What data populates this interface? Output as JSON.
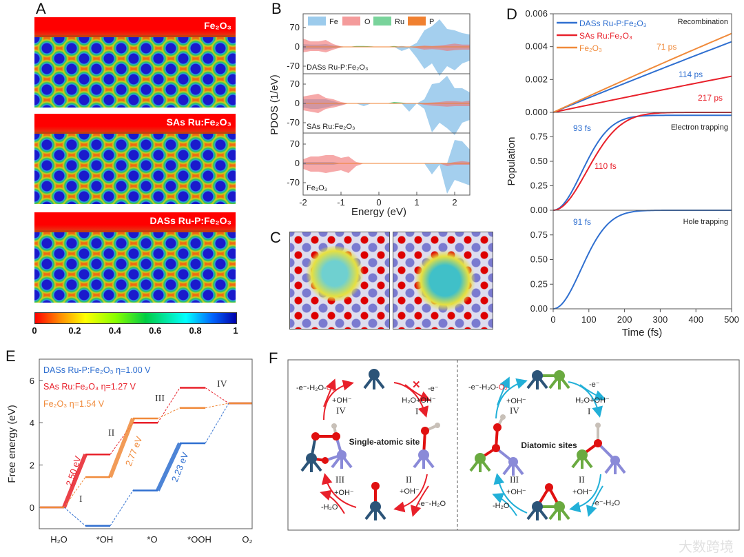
{
  "panel_labels": {
    "a": "A",
    "b": "B",
    "c": "C",
    "d": "D",
    "e": "E",
    "f": "F"
  },
  "panel_a": {
    "maps": [
      "Fe₂O₃",
      "SAs Ru:Fe₂O₃",
      "DASs Ru-P:Fe₂O₃"
    ],
    "colorbar_ticks": [
      "0",
      "0.2",
      "0.4",
      "0.6",
      "0.8",
      "1"
    ],
    "colorbar_range": [
      0,
      1
    ]
  },
  "colors": {
    "fe": "#5aa8e0",
    "o": "#f07070",
    "ru": "#40c070",
    "p": "#f08030",
    "blue": "#2f6fd0",
    "red": "#e8202a",
    "orange": "#f08a3a",
    "cyan": "#22b0d8"
  },
  "chart_data": [
    {
      "id": "B",
      "type": "area",
      "xlabel": "Energy (eV)",
      "ylabel": "PDOS (1/eV)",
      "xlim": [
        -2,
        2.4
      ],
      "ylim": [
        -108,
        108
      ],
      "xticks": [
        "-2",
        "-1",
        "0",
        "1",
        "2"
      ],
      "xtick_values": [
        -2,
        -1,
        0,
        1,
        2
      ],
      "yticks": [
        "70",
        "0",
        "-70"
      ],
      "ytick_values": [
        70,
        0,
        -70
      ],
      "legend": [
        "Fe",
        "O",
        "Ru",
        "P"
      ],
      "energy": [
        -2,
        -1.8,
        -1.6,
        -1.4,
        -1.2,
        -1.0,
        -0.8,
        -0.6,
        -0.4,
        -0.2,
        0,
        0.2,
        0.4,
        0.6,
        0.8,
        1.0,
        1.2,
        1.4,
        1.6,
        1.8,
        2.0,
        2.2,
        2.4
      ],
      "subplots": [
        {
          "label": "DASs Ru-P:Fe₂O₃",
          "fe_up": [
            10,
            8,
            8,
            10,
            5,
            2,
            0,
            0,
            0,
            0,
            0,
            0,
            0,
            3,
            0,
            15,
            60,
            75,
            100,
            65,
            60,
            50,
            45
          ],
          "fe_down": [
            -10,
            -8,
            -8,
            -10,
            -5,
            -2,
            0,
            0,
            0,
            0,
            0,
            0,
            0,
            -15,
            -5,
            -40,
            -80,
            -60,
            -105,
            -70,
            -85,
            -60,
            -50
          ],
          "o_up": [
            30,
            20,
            20,
            25,
            10,
            2,
            0,
            0,
            0,
            0,
            0,
            0,
            0,
            0,
            0,
            2,
            5,
            3,
            5,
            8,
            12,
            8,
            8
          ],
          "o_down": [
            -20,
            -15,
            -15,
            -20,
            -10,
            -2,
            0,
            0,
            0,
            0,
            0,
            0,
            0,
            0,
            0,
            -5,
            -10,
            -8,
            -10,
            -15,
            -12,
            -10,
            -10
          ],
          "ru_up": [
            0,
            0,
            0,
            0,
            0,
            0,
            0,
            3,
            3,
            2,
            0,
            0,
            3,
            0,
            0,
            0,
            0,
            0,
            0,
            0,
            0,
            0,
            0
          ]
        },
        {
          "label": "SAs Ru:Fe₂O₃",
          "fe_up": [
            15,
            15,
            15,
            15,
            8,
            0,
            0,
            0,
            0,
            0,
            0,
            0,
            0,
            0,
            0,
            0,
            15,
            70,
            75,
            100,
            55,
            55,
            40
          ],
          "fe_down": [
            -15,
            -20,
            -20,
            -15,
            -8,
            -5,
            0,
            0,
            -10,
            0,
            0,
            0,
            0,
            0,
            -30,
            0,
            -20,
            -105,
            -70,
            -90,
            -115,
            -70,
            -60
          ],
          "o_up": [
            25,
            30,
            35,
            20,
            15,
            5,
            0,
            0,
            0,
            0,
            0,
            0,
            0,
            0,
            0,
            0,
            2,
            3,
            5,
            8,
            8,
            6,
            10
          ],
          "o_down": [
            -25,
            -30,
            -35,
            -20,
            -15,
            -8,
            0,
            0,
            0,
            0,
            0,
            0,
            0,
            0,
            0,
            0,
            -5,
            -8,
            -10,
            -12,
            -10,
            -10,
            -10
          ],
          "ru_up": [
            0,
            0,
            0,
            0,
            0,
            0,
            0,
            0,
            0,
            0,
            0,
            0,
            5,
            3,
            0,
            0,
            0,
            0,
            0,
            0,
            0,
            0,
            0
          ]
        },
        {
          "label": "Fe₂O₃",
          "fe_up": [
            5,
            5,
            5,
            5,
            5,
            0,
            0,
            0,
            0,
            0,
            0,
            0,
            0,
            0,
            0,
            0,
            0,
            0,
            0,
            0,
            85,
            80,
            50
          ],
          "fe_down": [
            -5,
            -5,
            -5,
            -5,
            -5,
            0,
            0,
            0,
            0,
            0,
            0,
            0,
            0,
            0,
            0,
            0,
            0,
            -40,
            -5,
            -110,
            -60,
            -70,
            -80
          ],
          "o_up": [
            15,
            25,
            25,
            30,
            30,
            20,
            25,
            5,
            0,
            0,
            0,
            0,
            0,
            0,
            0,
            0,
            0,
            0,
            0,
            0,
            5,
            8,
            5
          ],
          "o_down": [
            -20,
            -30,
            -30,
            -35,
            -30,
            -25,
            -35,
            -10,
            0,
            0,
            0,
            0,
            0,
            0,
            0,
            0,
            0,
            0,
            0,
            -10,
            -5,
            -5,
            -5
          ],
          "ru_up": [
            0,
            0,
            0,
            0,
            0,
            0,
            0,
            0,
            0,
            0,
            0,
            0,
            0,
            0,
            0,
            0,
            0,
            0,
            0,
            0,
            0,
            0,
            0
          ]
        }
      ]
    },
    {
      "id": "D",
      "type": "line",
      "xlabel": "Time (fs)",
      "ylabel": "Population",
      "xlim": [
        0,
        500
      ],
      "xticks": [
        "0",
        "100",
        "200",
        "300",
        "400",
        "500"
      ],
      "xtick_values": [
        0,
        100,
        200,
        300,
        400,
        500
      ],
      "legend": [
        "DASs Ru-P:Fe₂O₃",
        "SAs Ru:Fe₂O₃",
        "Fe₂O₃"
      ],
      "subplots": [
        {
          "title": "Recombination",
          "ylim": [
            0,
            0.006
          ],
          "yticks": [
            "0.006",
            "0.004",
            "0.002",
            "0.000"
          ],
          "ytick_values": [
            0.006,
            0.004,
            0.002,
            0
          ],
          "series": [
            {
              "name": "DASs Ru-P:Fe₂O₃",
              "end_value": 0.0043,
              "lifetime_label": "114 ps"
            },
            {
              "name": "SAs Ru:Fe₂O₃",
              "end_value": 0.0022,
              "lifetime_label": "217 ps"
            },
            {
              "name": "Fe₂O₃",
              "end_value": 0.0048,
              "lifetime_label": "71 ps"
            }
          ]
        },
        {
          "title": "Electron trapping",
          "ylim": [
            0,
            1
          ],
          "yticks": [
            "0.75",
            "0.50",
            "0.25",
            "0.00"
          ],
          "ytick_values": [
            0.75,
            0.5,
            0.25,
            0
          ],
          "series": [
            {
              "name": "DASs Ru-P:Fe₂O₃",
              "plateau": 0.97,
              "tau_fs": 93,
              "lifetime_label": "93 fs"
            },
            {
              "name": "SAs Ru:Fe₂O₃",
              "plateau": 1.0,
              "tau_fs": 110,
              "lifetime_label": "110 fs"
            }
          ]
        },
        {
          "title": "Hole trapping",
          "ylim": [
            0,
            1
          ],
          "yticks": [
            "0.75",
            "0.50",
            "0.25",
            "0.00"
          ],
          "ytick_values": [
            0.75,
            0.5,
            0.25,
            0
          ],
          "series": [
            {
              "name": "DASs Ru-P:Fe₂O₃",
              "plateau": 1.0,
              "tau_fs": 91,
              "lifetime_label": "91 fs"
            }
          ]
        }
      ]
    },
    {
      "id": "E",
      "type": "line",
      "ylabel": "Free energy (eV)",
      "ylim": [
        -1,
        7
      ],
      "yticks": [
        "6",
        "4",
        "2",
        "0"
      ],
      "ytick_values": [
        6,
        4,
        2,
        0
      ],
      "categories": [
        "H₂O",
        "*OH",
        "*O",
        "*OOH",
        "O₂"
      ],
      "steps": [
        "I",
        "II",
        "III",
        "IV"
      ],
      "series": [
        {
          "name": "DASs Ru-P:Fe₂O₃ η=1.00 V",
          "values": [
            0,
            -0.87,
            0.8,
            3.03,
            4.92
          ],
          "barrier_label": "2.23 eV",
          "rds_step": 2
        },
        {
          "name": "SAs Ru:Fe₂O₃ η=1.27 V",
          "values": [
            0,
            2.5,
            4.0,
            5.65,
            4.92
          ],
          "barrier_label": "2.50 eV",
          "rds_step": 0
        },
        {
          "name": "Fe₂O₃ η=1.54 V",
          "values": [
            0,
            1.43,
            4.2,
            4.7,
            4.92
          ],
          "barrier_label": "2.77 eV",
          "rds_step": 1
        }
      ]
    }
  ],
  "panel_f": {
    "left_title": "Single-atomic site",
    "right_title": "Diatomic sites",
    "steps": [
      "I",
      "II",
      "III",
      "IV"
    ],
    "left": {
      "step1_a": "H₂O+OH⁻",
      "step1_b": "-e⁻",
      "blocked_mark": "✕",
      "step2_a": "+OH⁻",
      "step2_b": "-e⁻-H₂O",
      "step3_a": "+OH⁻",
      "step3_b": "-H₂O",
      "step4_a": "+OH⁻",
      "step4_b": "-e⁻-H₂O-",
      "step4_c": "O₂"
    },
    "right": {
      "step1_a": "H₂O+OH⁻",
      "step1_b": "-e⁻",
      "step2_a": "+OH⁻",
      "step2_b": "-e⁻-H₂O",
      "step3_a": "+OH⁻",
      "step3_b": "-H₂O",
      "step4_a": "+OH⁻",
      "step4_b": "-e⁻-H₂O-",
      "step4_c": "O₂"
    }
  },
  "watermark": "大数跨境"
}
